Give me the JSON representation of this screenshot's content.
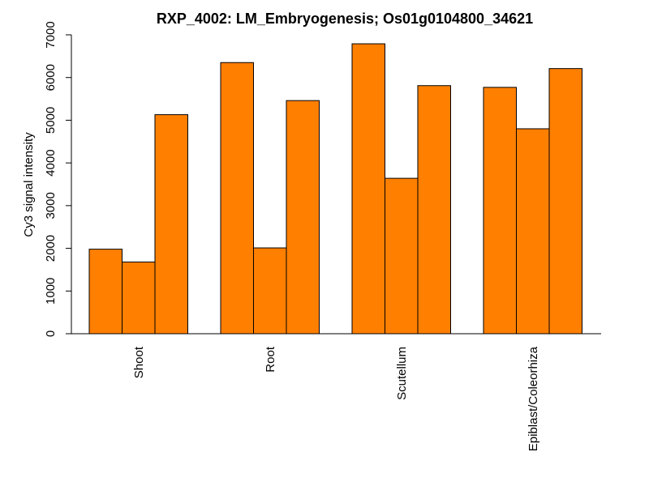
{
  "chart_data": {
    "type": "bar",
    "title": "RXP_4002: LM_Embryogenesis; Os01g0104800_34621",
    "xlabel": "",
    "ylabel": "Cy3 signal intensity",
    "ylim": [
      0,
      7000
    ],
    "yticks": [
      0,
      1000,
      2000,
      3000,
      4000,
      5000,
      6000,
      7000
    ],
    "categories": [
      "Shoot",
      "Root",
      "Scutellum",
      "Epiblast/Coleorhiza"
    ],
    "values": [
      [
        1980,
        1680,
        5130
      ],
      [
        6350,
        2010,
        5460
      ],
      [
        6790,
        3640,
        5810
      ],
      [
        5770,
        4800,
        6210
      ]
    ],
    "bar_color": "#FF7F00",
    "grid": false
  }
}
